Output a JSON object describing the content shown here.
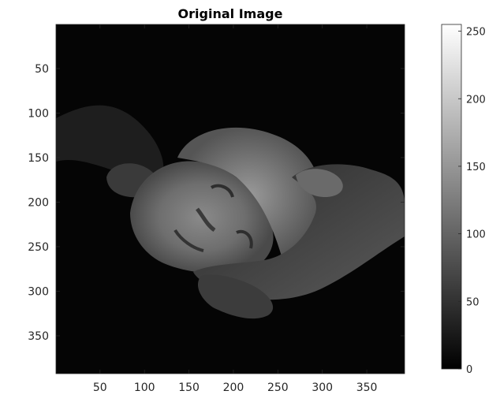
{
  "chart_data": {
    "type": "heatmap",
    "title": "Original Image",
    "xlabel": "",
    "ylabel": "",
    "content": "grayscale photograph",
    "colormap": "gray",
    "xlim": [
      0.5,
      392.5
    ],
    "ylim": [
      0.5,
      392.5
    ],
    "y_reversed": true,
    "x_ticks": [
      50,
      100,
      150,
      200,
      250,
      300,
      350
    ],
    "y_ticks": [
      50,
      100,
      150,
      200,
      250,
      300,
      350
    ],
    "colorbar": {
      "range": [
        0,
        255
      ],
      "ticks": [
        0,
        50,
        100,
        150,
        200,
        250
      ],
      "placement": "right"
    }
  }
}
